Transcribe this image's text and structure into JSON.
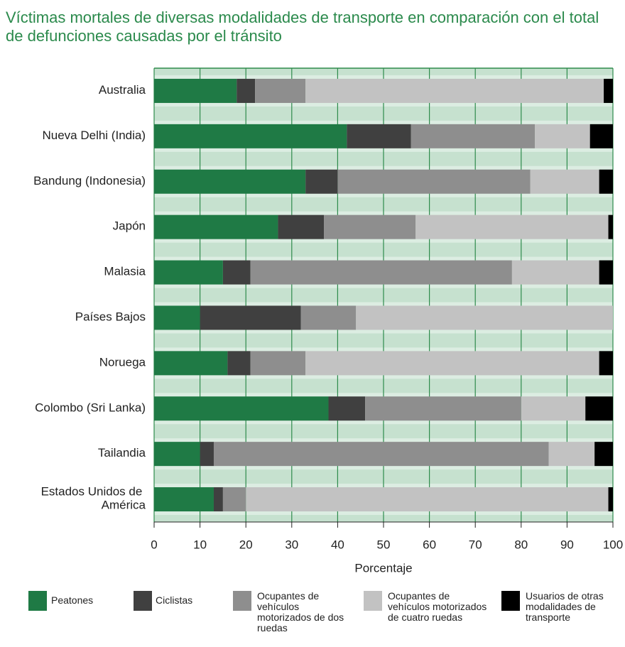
{
  "chart_data": {
    "type": "stacked_barh",
    "title": "Víctimas mortales de diversas modalidades de transporte en comparación con el total de defunciones causadas por el tránsito",
    "categories": [
      "Australia",
      "Nueva Delhi (India)",
      "Bandung (Indonesia)",
      "Japón",
      "Malasia",
      "Países Bajos",
      "Noruega",
      "Colombo (Sri Lanka)",
      "Tailandia",
      "Estados Unidos de América"
    ],
    "series": [
      {
        "name": "Peatones",
        "color": "#1f7a45",
        "values": [
          18,
          42,
          33,
          27,
          15,
          10,
          16,
          38,
          10,
          13
        ]
      },
      {
        "name": "Ciclistas",
        "color": "#404040",
        "values": [
          4,
          14,
          7,
          10,
          6,
          22,
          5,
          8,
          3,
          2
        ]
      },
      {
        "name": "Ocupantes de vehículos motorizados de dos ruedas",
        "color": "#8e8e8e",
        "values": [
          11,
          27,
          42,
          20,
          57,
          12,
          12,
          34,
          73,
          5
        ]
      },
      {
        "name": "Ocupantes de vehículos motorizados de cuatro ruedas",
        "color": "#c2c2c2",
        "values": [
          65,
          12,
          15,
          42,
          19,
          56,
          64,
          14,
          10,
          79
        ]
      },
      {
        "name": "Usuarios de otras modalidades de transporte",
        "color": "#000000",
        "values": [
          2,
          5,
          3,
          1,
          3,
          0,
          3,
          6,
          4,
          1
        ]
      }
    ],
    "xlabel": "Porcentaje",
    "xlim": [
      0,
      100
    ],
    "xticks": [
      0,
      10,
      20,
      30,
      40,
      50,
      60,
      70,
      80,
      90,
      100
    ],
    "grid": true
  }
}
